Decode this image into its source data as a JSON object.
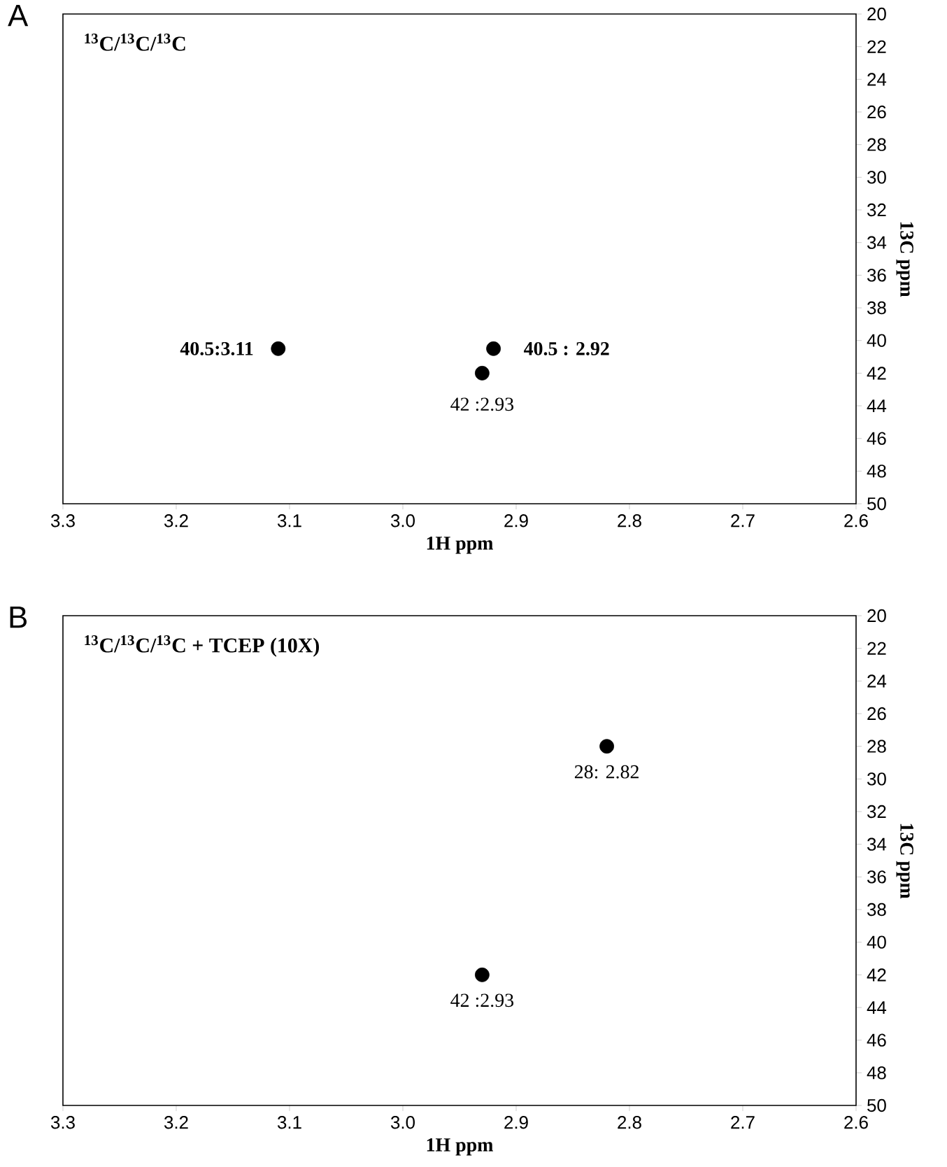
{
  "chart_data": [
    {
      "type": "scatter",
      "title": "$^{13}$C/$^{13}$C/$^{13}$C",
      "xlabel": "1H ppm",
      "ylabel": "13C ppm",
      "x": [
        3.11,
        2.92,
        2.93
      ],
      "values": [
        40.5,
        40.5,
        42
      ],
      "color": "#000000",
      "xlim": [
        3.3,
        2.6
      ],
      "xticks": [
        3.3,
        3.2,
        3.1,
        {
          "value": 3.0,
          "label": "3.0"
        },
        2.9,
        2.8,
        2.7,
        2.6
      ],
      "ylim": [
        50,
        20
      ],
      "yticks": [
        20,
        22,
        24,
        26,
        28,
        30,
        32,
        34,
        36,
        38,
        40,
        42,
        44,
        46,
        48,
        50
      ],
      "annotations": [
        "A",
        {
          "text": "40.5:3.11",
          "x": 3.11,
          "y": 40.5
        },
        {
          "text": "40.5 : 2.92",
          "x": 2.92,
          "y": 40.5
        },
        {
          "text": "42 :2.93",
          "x": 2.93,
          "y": 42
        }
      ]
    },
    {
      "type": "scatter",
      "title": "$^{13}$C/$^{13}$C/$^{13}$C + TCEP (10X)",
      "xlabel": "1H ppm",
      "ylabel": "13C ppm",
      "x": [
        2.82,
        2.93
      ],
      "values": [
        28,
        42
      ],
      "color": "#000000",
      "xlim": [
        3.3,
        2.6
      ],
      "xticks": [
        3.3,
        3.2,
        3.1,
        {
          "value": 3.0,
          "label": "3.0"
        },
        2.9,
        2.8,
        2.7,
        2.6
      ],
      "ylim": [
        50,
        20
      ],
      "yticks": [
        20,
        22,
        24,
        26,
        28,
        30,
        32,
        34,
        36,
        38,
        40,
        42,
        44,
        46,
        48,
        50
      ],
      "annotations": [
        "B",
        {
          "text": "28: 2.82",
          "x": 2.82,
          "y": 28
        },
        {
          "text": "42 :2.93",
          "x": 2.93,
          "y": 42
        }
      ]
    }
  ]
}
